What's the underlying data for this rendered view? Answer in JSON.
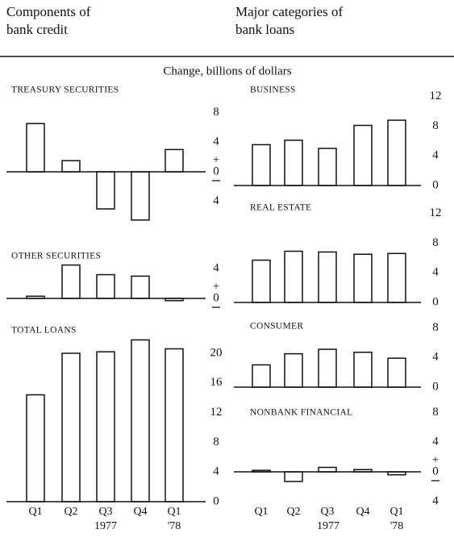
{
  "header": {
    "left": [
      "Components of",
      "bank credit"
    ],
    "right": [
      "Major categories of",
      "bank loans"
    ],
    "subtitle": "Change, billions of dollars"
  },
  "chart_data": [
    {
      "type": "bar",
      "title": "TREASURY SECURITIES",
      "values": [
        6.5,
        1.5,
        -5,
        -6.5,
        3
      ],
      "color": "#ffffff",
      "ylim": [
        -7,
        9
      ],
      "yticks": [
        {
          "value": -4,
          "label": "4"
        },
        0,
        4,
        8
      ],
      "zero_sign": "+"
    },
    {
      "type": "bar",
      "title": "OTHER SECURITIES",
      "values": [
        0.3,
        4.5,
        3.2,
        3,
        -0.3
      ],
      "color": "#ffffff",
      "ylim": [
        -1,
        6
      ],
      "yticks": [
        0,
        4
      ],
      "zero_sign": "+"
    },
    {
      "type": "bar",
      "title": "TOTAL LOANS",
      "values": [
        14.4,
        20,
        20.2,
        21.8,
        20.6
      ],
      "color": "#ffffff",
      "ylim": [
        0,
        23
      ],
      "yticks": [
        0,
        4,
        8,
        12,
        16,
        20
      ],
      "categories": [
        "Q1",
        "Q2",
        "Q3",
        "Q4",
        "Q1"
      ],
      "years": [
        "1977",
        "'78"
      ]
    },
    {
      "type": "bar",
      "title": "BUSINESS",
      "values": [
        5.5,
        6.1,
        5,
        8.1,
        8.8
      ],
      "color": "#ffffff",
      "ylim": [
        0,
        13
      ],
      "yticks": [
        0,
        4,
        8,
        12
      ]
    },
    {
      "type": "bar",
      "title": "REAL ESTATE",
      "values": [
        5.7,
        6.9,
        6.8,
        6.5,
        6.6
      ],
      "color": "#ffffff",
      "ylim": [
        0,
        13
      ],
      "yticks": [
        0,
        4,
        8,
        12
      ]
    },
    {
      "type": "bar",
      "title": "CONSUMER",
      "values": [
        3,
        4.5,
        5.1,
        4.7,
        3.9
      ],
      "color": "#ffffff",
      "ylim": [
        0,
        9
      ],
      "yticks": [
        0,
        4,
        8
      ]
    },
    {
      "type": "bar",
      "title": "NONBANK FINANCIAL",
      "values": [
        0.2,
        -1.3,
        0.6,
        0.3,
        -0.4
      ],
      "color": "#ffffff",
      "ylim": [
        -5,
        9
      ],
      "yticks": [
        {
          "value": -4,
          "label": "4"
        },
        0,
        4,
        8
      ],
      "zero_sign": "+",
      "categories": [
        "Q1",
        "Q2",
        "Q3",
        "Q4",
        "Q1"
      ],
      "years": [
        "1977",
        "'78"
      ]
    }
  ]
}
